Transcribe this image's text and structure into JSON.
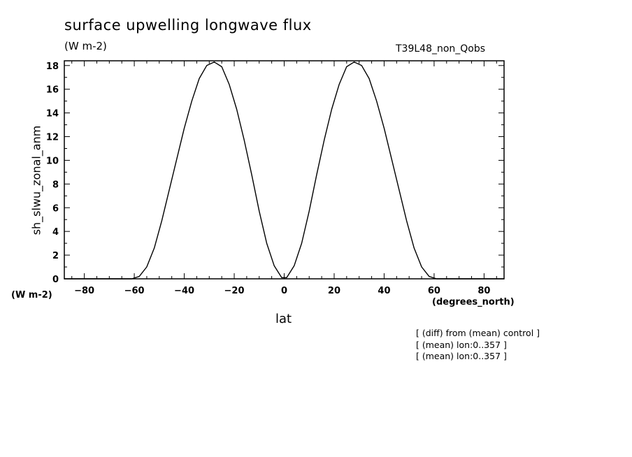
{
  "chart_data": {
    "type": "line",
    "title": "surface upwelling longwave flux",
    "units": "(W m-2)",
    "run_label": "T39L48_non_Qobs",
    "ylabel": "sh_slwu_zonal_anm",
    "y_units": "(W m-2)",
    "xlabel": "lat",
    "x_units": "(degrees_north)",
    "xlim": [
      -88,
      88
    ],
    "ylim": [
      0,
      18.4
    ],
    "x_ticks": [
      -80,
      -60,
      -40,
      -20,
      0,
      20,
      40,
      60,
      80
    ],
    "x_tick_labels": [
      "−80",
      "−60",
      "−40",
      "−20",
      "0",
      "20",
      "40",
      "60",
      "80"
    ],
    "y_ticks": [
      0,
      2,
      4,
      6,
      8,
      10,
      12,
      14,
      16,
      18
    ],
    "y_tick_labels": [
      "0",
      "2",
      "4",
      "6",
      "8",
      "10",
      "12",
      "14",
      "16",
      "18"
    ],
    "grid": false,
    "series": [
      {
        "x": [
          -88,
          -61,
          -58,
          -55,
          -52,
          -49,
          -46,
          -43,
          -40,
          -37,
          -34,
          -31,
          -28,
          -25,
          -22,
          -19,
          -16,
          -13,
          -10,
          -7,
          -4,
          -1,
          1,
          4,
          7,
          10,
          13,
          16,
          19,
          22,
          25,
          28,
          31,
          34,
          37,
          40,
          43,
          46,
          49,
          52,
          55,
          58,
          61,
          88
        ],
        "y": [
          0,
          0,
          0.2,
          1.0,
          2.6,
          4.9,
          7.5,
          10.1,
          12.7,
          15.0,
          16.9,
          18.0,
          18.3,
          17.9,
          16.4,
          14.3,
          11.7,
          8.8,
          5.7,
          3.0,
          1.1,
          0.1,
          0.1,
          1.1,
          3.0,
          5.7,
          8.8,
          11.7,
          14.3,
          16.4,
          17.9,
          18.3,
          18.0,
          16.9,
          15.0,
          12.7,
          10.1,
          7.5,
          4.9,
          2.6,
          1.0,
          0.2,
          0,
          0
        ]
      }
    ],
    "annotations": [
      "[ (diff) from (mean) control ]",
      "[ (mean) lon:0..357 ]",
      "[ (mean) lon:0..357 ]"
    ]
  }
}
